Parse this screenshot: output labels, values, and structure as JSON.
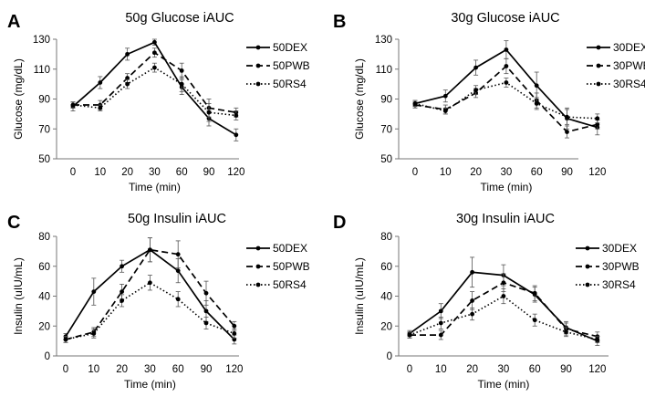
{
  "chart_data": [
    {
      "type": "line",
      "panel_letter": "A",
      "title": "50g Glucose iAUC",
      "xlabel": "Time (min)",
      "ylabel": "Glucose  (mg/dL)",
      "categories": [
        "0",
        "10",
        "20",
        "30",
        "60",
        "90",
        "120"
      ],
      "ylim": [
        50,
        130
      ],
      "yticks": [
        50,
        70,
        90,
        110,
        130
      ],
      "grid": false,
      "legend_position": "top-right",
      "series": [
        {
          "name": "50DEX",
          "style": "solid",
          "values": [
            85,
            101,
            120,
            128,
            98,
            77,
            66
          ],
          "errors": [
            3,
            4,
            4,
            2,
            5,
            5,
            4
          ]
        },
        {
          "name": "50PWB",
          "style": "dashed",
          "values": [
            86,
            86,
            104,
            121,
            109,
            84,
            81
          ],
          "errors": [
            2,
            3,
            3,
            3,
            5,
            6,
            3
          ]
        },
        {
          "name": "50RS4",
          "style": "dotted",
          "values": [
            86,
            84,
            100,
            111,
            100,
            81,
            79
          ],
          "errors": [
            2,
            2,
            3,
            3,
            5,
            6,
            3
          ]
        }
      ]
    },
    {
      "type": "line",
      "panel_letter": "B",
      "title": "30g Glucose iAUC",
      "xlabel": "Time (min)",
      "ylabel": "Glucose  (mg/dL)",
      "categories": [
        "0",
        "10",
        "20",
        "30",
        "60",
        "90",
        "120"
      ],
      "ylim": [
        50,
        130
      ],
      "yticks": [
        50,
        70,
        90,
        110,
        130
      ],
      "grid": false,
      "legend_position": "top-right",
      "series": [
        {
          "name": "30DEX",
          "style": "solid",
          "values": [
            87,
            92,
            111,
            123,
            99,
            77,
            71
          ],
          "errors": [
            2,
            4,
            5,
            6,
            9,
            7,
            5
          ]
        },
        {
          "name": "30PWB",
          "style": "dashed",
          "values": [
            86,
            83,
            94,
            112,
            89,
            68,
            73
          ],
          "errors": [
            2,
            3,
            3,
            5,
            5,
            4,
            3
          ]
        },
        {
          "name": "30RS4",
          "style": "dotted",
          "values": [
            87,
            82,
            96,
            101,
            87,
            78,
            77
          ],
          "errors": [
            2,
            2,
            3,
            3,
            4,
            5,
            3
          ]
        }
      ]
    },
    {
      "type": "line",
      "panel_letter": "C",
      "title": "50g Insulin iAUC",
      "xlabel": "Time (min)",
      "ylabel": "Insulin (uIU/mL)",
      "categories": [
        "0",
        "10",
        "20",
        "30",
        "60",
        "90",
        "120"
      ],
      "ylim": [
        0,
        80
      ],
      "yticks": [
        0,
        20,
        40,
        60,
        80
      ],
      "grid": false,
      "legend_position": "top-right",
      "series": [
        {
          "name": "50DEX",
          "style": "solid",
          "values": [
            13,
            43,
            60,
            71,
            57,
            30,
            11
          ],
          "errors": [
            2,
            9,
            4,
            8,
            8,
            7,
            3
          ]
        },
        {
          "name": "50PWB",
          "style": "dashed",
          "values": [
            11,
            16,
            43,
            71,
            68,
            42,
            20
          ],
          "errors": [
            2,
            3,
            5,
            8,
            9,
            8,
            3
          ]
        },
        {
          "name": "50RS4",
          "style": "dotted",
          "values": [
            11,
            15,
            37,
            49,
            38,
            22,
            15
          ],
          "errors": [
            2,
            3,
            4,
            5,
            5,
            4,
            3
          ]
        }
      ]
    },
    {
      "type": "line",
      "panel_letter": "D",
      "title": "30g Insulin iAUC",
      "xlabel": "Time (min)",
      "ylabel": "Insulin (uIU/mL)",
      "categories": [
        "0",
        "10",
        "20",
        "30",
        "60",
        "90",
        "120"
      ],
      "ylim": [
        0,
        80
      ],
      "yticks": [
        0,
        20,
        40,
        60,
        80
      ],
      "grid": false,
      "legend_position": "top-right",
      "series": [
        {
          "name": "30DEX",
          "style": "solid",
          "values": [
            15,
            30,
            56,
            54,
            41,
            19,
            10
          ],
          "errors": [
            2,
            5,
            10,
            7,
            5,
            4,
            3
          ]
        },
        {
          "name": "30PWB",
          "style": "dashed",
          "values": [
            14,
            14,
            37,
            49,
            42,
            18,
            13
          ],
          "errors": [
            2,
            3,
            6,
            6,
            5,
            4,
            3
          ]
        },
        {
          "name": "30RS4",
          "style": "dotted",
          "values": [
            14,
            22,
            28,
            40,
            24,
            16,
            11
          ],
          "errors": [
            2,
            4,
            4,
            5,
            4,
            3,
            2
          ]
        }
      ]
    }
  ]
}
